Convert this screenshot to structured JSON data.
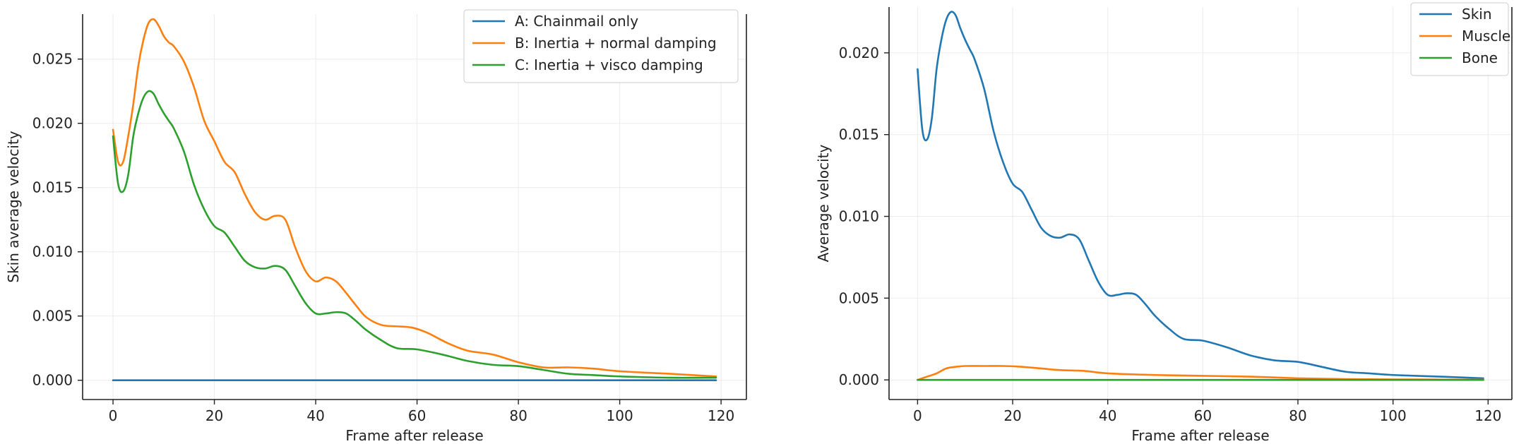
{
  "chart_data": [
    {
      "type": "line",
      "title": "",
      "xlabel": "Frame after release",
      "ylabel": "Skin average velocity",
      "xlim": [
        -6,
        125
      ],
      "ylim": [
        -0.0015,
        0.0285
      ],
      "xticks": [
        0,
        20,
        40,
        60,
        80,
        100,
        120
      ],
      "yticks": [
        0.0,
        0.005,
        0.01,
        0.015,
        0.02,
        0.025
      ],
      "ytick_labels": [
        "0.000",
        "0.005",
        "0.010",
        "0.015",
        "0.020",
        "0.025"
      ],
      "grid": true,
      "legend_position": "top-right",
      "series": [
        {
          "name": "A: Chainmail only",
          "color": "#1f77b4",
          "x": [
            0,
            119
          ],
          "y": [
            0.0,
            0.0
          ]
        },
        {
          "name": "B: Inertia + normal damping",
          "color": "#ff7f0e",
          "x": [
            0,
            1,
            2,
            3,
            4,
            5,
            6,
            7,
            8,
            9,
            10,
            11,
            12,
            14,
            16,
            18,
            20,
            22,
            24,
            26,
            28,
            30,
            32,
            34,
            36,
            38,
            40,
            42,
            44,
            46,
            48,
            50,
            53,
            56,
            59,
            62,
            66,
            70,
            75,
            80,
            85,
            90,
            95,
            100,
            110,
            119
          ],
          "y": [
            0.0195,
            0.017,
            0.017,
            0.019,
            0.0215,
            0.0245,
            0.0265,
            0.0278,
            0.0281,
            0.0276,
            0.0268,
            0.0263,
            0.026,
            0.0248,
            0.0228,
            0.0202,
            0.0186,
            0.017,
            0.0162,
            0.0145,
            0.0131,
            0.0125,
            0.0128,
            0.0125,
            0.0103,
            0.0085,
            0.0077,
            0.008,
            0.0077,
            0.0068,
            0.0058,
            0.0049,
            0.0043,
            0.0042,
            0.0041,
            0.0037,
            0.0029,
            0.0023,
            0.002,
            0.0014,
            0.001,
            0.001,
            0.0009,
            0.0007,
            0.0005,
            0.0003
          ]
        },
        {
          "name": "C: Inertia + visco damping",
          "color": "#2ca02c",
          "x": [
            0,
            1,
            2,
            3,
            4,
            5,
            6,
            7,
            8,
            9,
            10,
            11,
            12,
            14,
            16,
            18,
            20,
            22,
            24,
            26,
            28,
            30,
            32,
            34,
            36,
            38,
            40,
            42,
            44,
            46,
            48,
            50,
            53,
            56,
            60,
            65,
            70,
            75,
            80,
            85,
            90,
            95,
            100,
            110,
            119
          ],
          "y": [
            0.019,
            0.0153,
            0.0147,
            0.016,
            0.019,
            0.0208,
            0.022,
            0.0225,
            0.0223,
            0.0215,
            0.0208,
            0.0202,
            0.0196,
            0.0178,
            0.0152,
            0.0133,
            0.012,
            0.0115,
            0.0104,
            0.0093,
            0.0088,
            0.0087,
            0.0089,
            0.0086,
            0.0073,
            0.006,
            0.0052,
            0.0052,
            0.0053,
            0.0052,
            0.0046,
            0.0039,
            0.0031,
            0.0025,
            0.0024,
            0.002,
            0.0015,
            0.0012,
            0.0011,
            0.0008,
            0.0005,
            0.0004,
            0.0003,
            0.0002,
            0.0002
          ]
        }
      ]
    },
    {
      "type": "line",
      "title": "",
      "xlabel": "Frame after release",
      "ylabel": "Average velocity",
      "xlim": [
        -6,
        125
      ],
      "ylim": [
        -0.0012,
        0.0228
      ],
      "xticks": [
        0,
        20,
        40,
        60,
        80,
        100,
        120
      ],
      "yticks": [
        0.0,
        0.005,
        0.01,
        0.015,
        0.02
      ],
      "ytick_labels": [
        "0.000",
        "0.005",
        "0.010",
        "0.015",
        "0.020"
      ],
      "grid": true,
      "legend_position": "top-right",
      "series": [
        {
          "name": "Skin",
          "color": "#1f77b4",
          "x": [
            0,
            1,
            2,
            3,
            4,
            5,
            6,
            7,
            8,
            9,
            10,
            11,
            12,
            14,
            16,
            18,
            20,
            22,
            24,
            26,
            28,
            30,
            32,
            34,
            36,
            38,
            40,
            42,
            44,
            46,
            48,
            50,
            53,
            56,
            60,
            65,
            70,
            75,
            80,
            85,
            90,
            95,
            100,
            110,
            119
          ],
          "y": [
            0.019,
            0.0153,
            0.0147,
            0.016,
            0.019,
            0.0208,
            0.022,
            0.0225,
            0.0223,
            0.0215,
            0.0208,
            0.0202,
            0.0196,
            0.0178,
            0.0152,
            0.0133,
            0.012,
            0.0115,
            0.0104,
            0.0093,
            0.0088,
            0.0087,
            0.0089,
            0.0086,
            0.0073,
            0.006,
            0.0052,
            0.0052,
            0.0053,
            0.0052,
            0.0046,
            0.0039,
            0.0031,
            0.0025,
            0.0024,
            0.002,
            0.0015,
            0.0012,
            0.0011,
            0.0008,
            0.0005,
            0.0004,
            0.0003,
            0.0002,
            0.0001
          ]
        },
        {
          "name": "Muscle",
          "color": "#ff7f0e",
          "x": [
            0,
            2,
            4,
            6,
            8,
            10,
            14,
            18,
            22,
            26,
            30,
            35,
            40,
            50,
            60,
            70,
            80,
            90,
            100,
            110,
            119
          ],
          "y": [
            0.0,
            0.0002,
            0.0004,
            0.0007,
            0.0008,
            0.00085,
            0.00085,
            0.00085,
            0.0008,
            0.0007,
            0.0006,
            0.00055,
            0.0004,
            0.0003,
            0.00025,
            0.0002,
            0.0001,
            5e-05,
            3e-05,
            2e-05,
            1e-05
          ]
        },
        {
          "name": "Bone",
          "color": "#2ca02c",
          "x": [
            0,
            119
          ],
          "y": [
            0.0,
            0.0
          ]
        }
      ]
    }
  ]
}
